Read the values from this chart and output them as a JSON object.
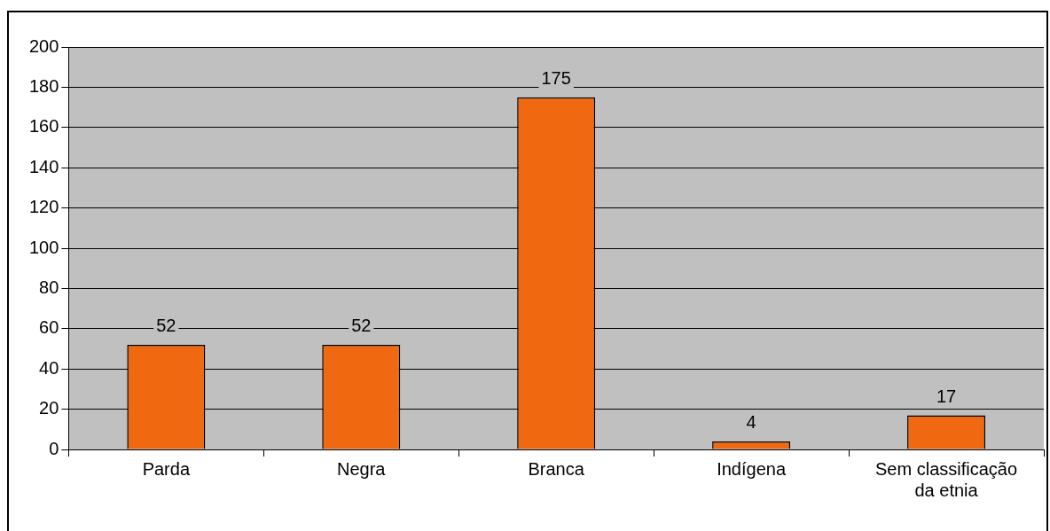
{
  "chart_data": {
    "type": "bar",
    "categories": [
      "Parda",
      "Negra",
      "Branca",
      "Indígena",
      "Sem classificação da etnia"
    ],
    "values": [
      52,
      52,
      175,
      4,
      17
    ],
    "color": "#f06810",
    "ylim": [
      0,
      200
    ],
    "yticks": [
      0,
      20,
      40,
      60,
      80,
      100,
      120,
      140,
      160,
      180,
      200
    ],
    "grid": "y",
    "data_labels": true,
    "legend": false
  }
}
